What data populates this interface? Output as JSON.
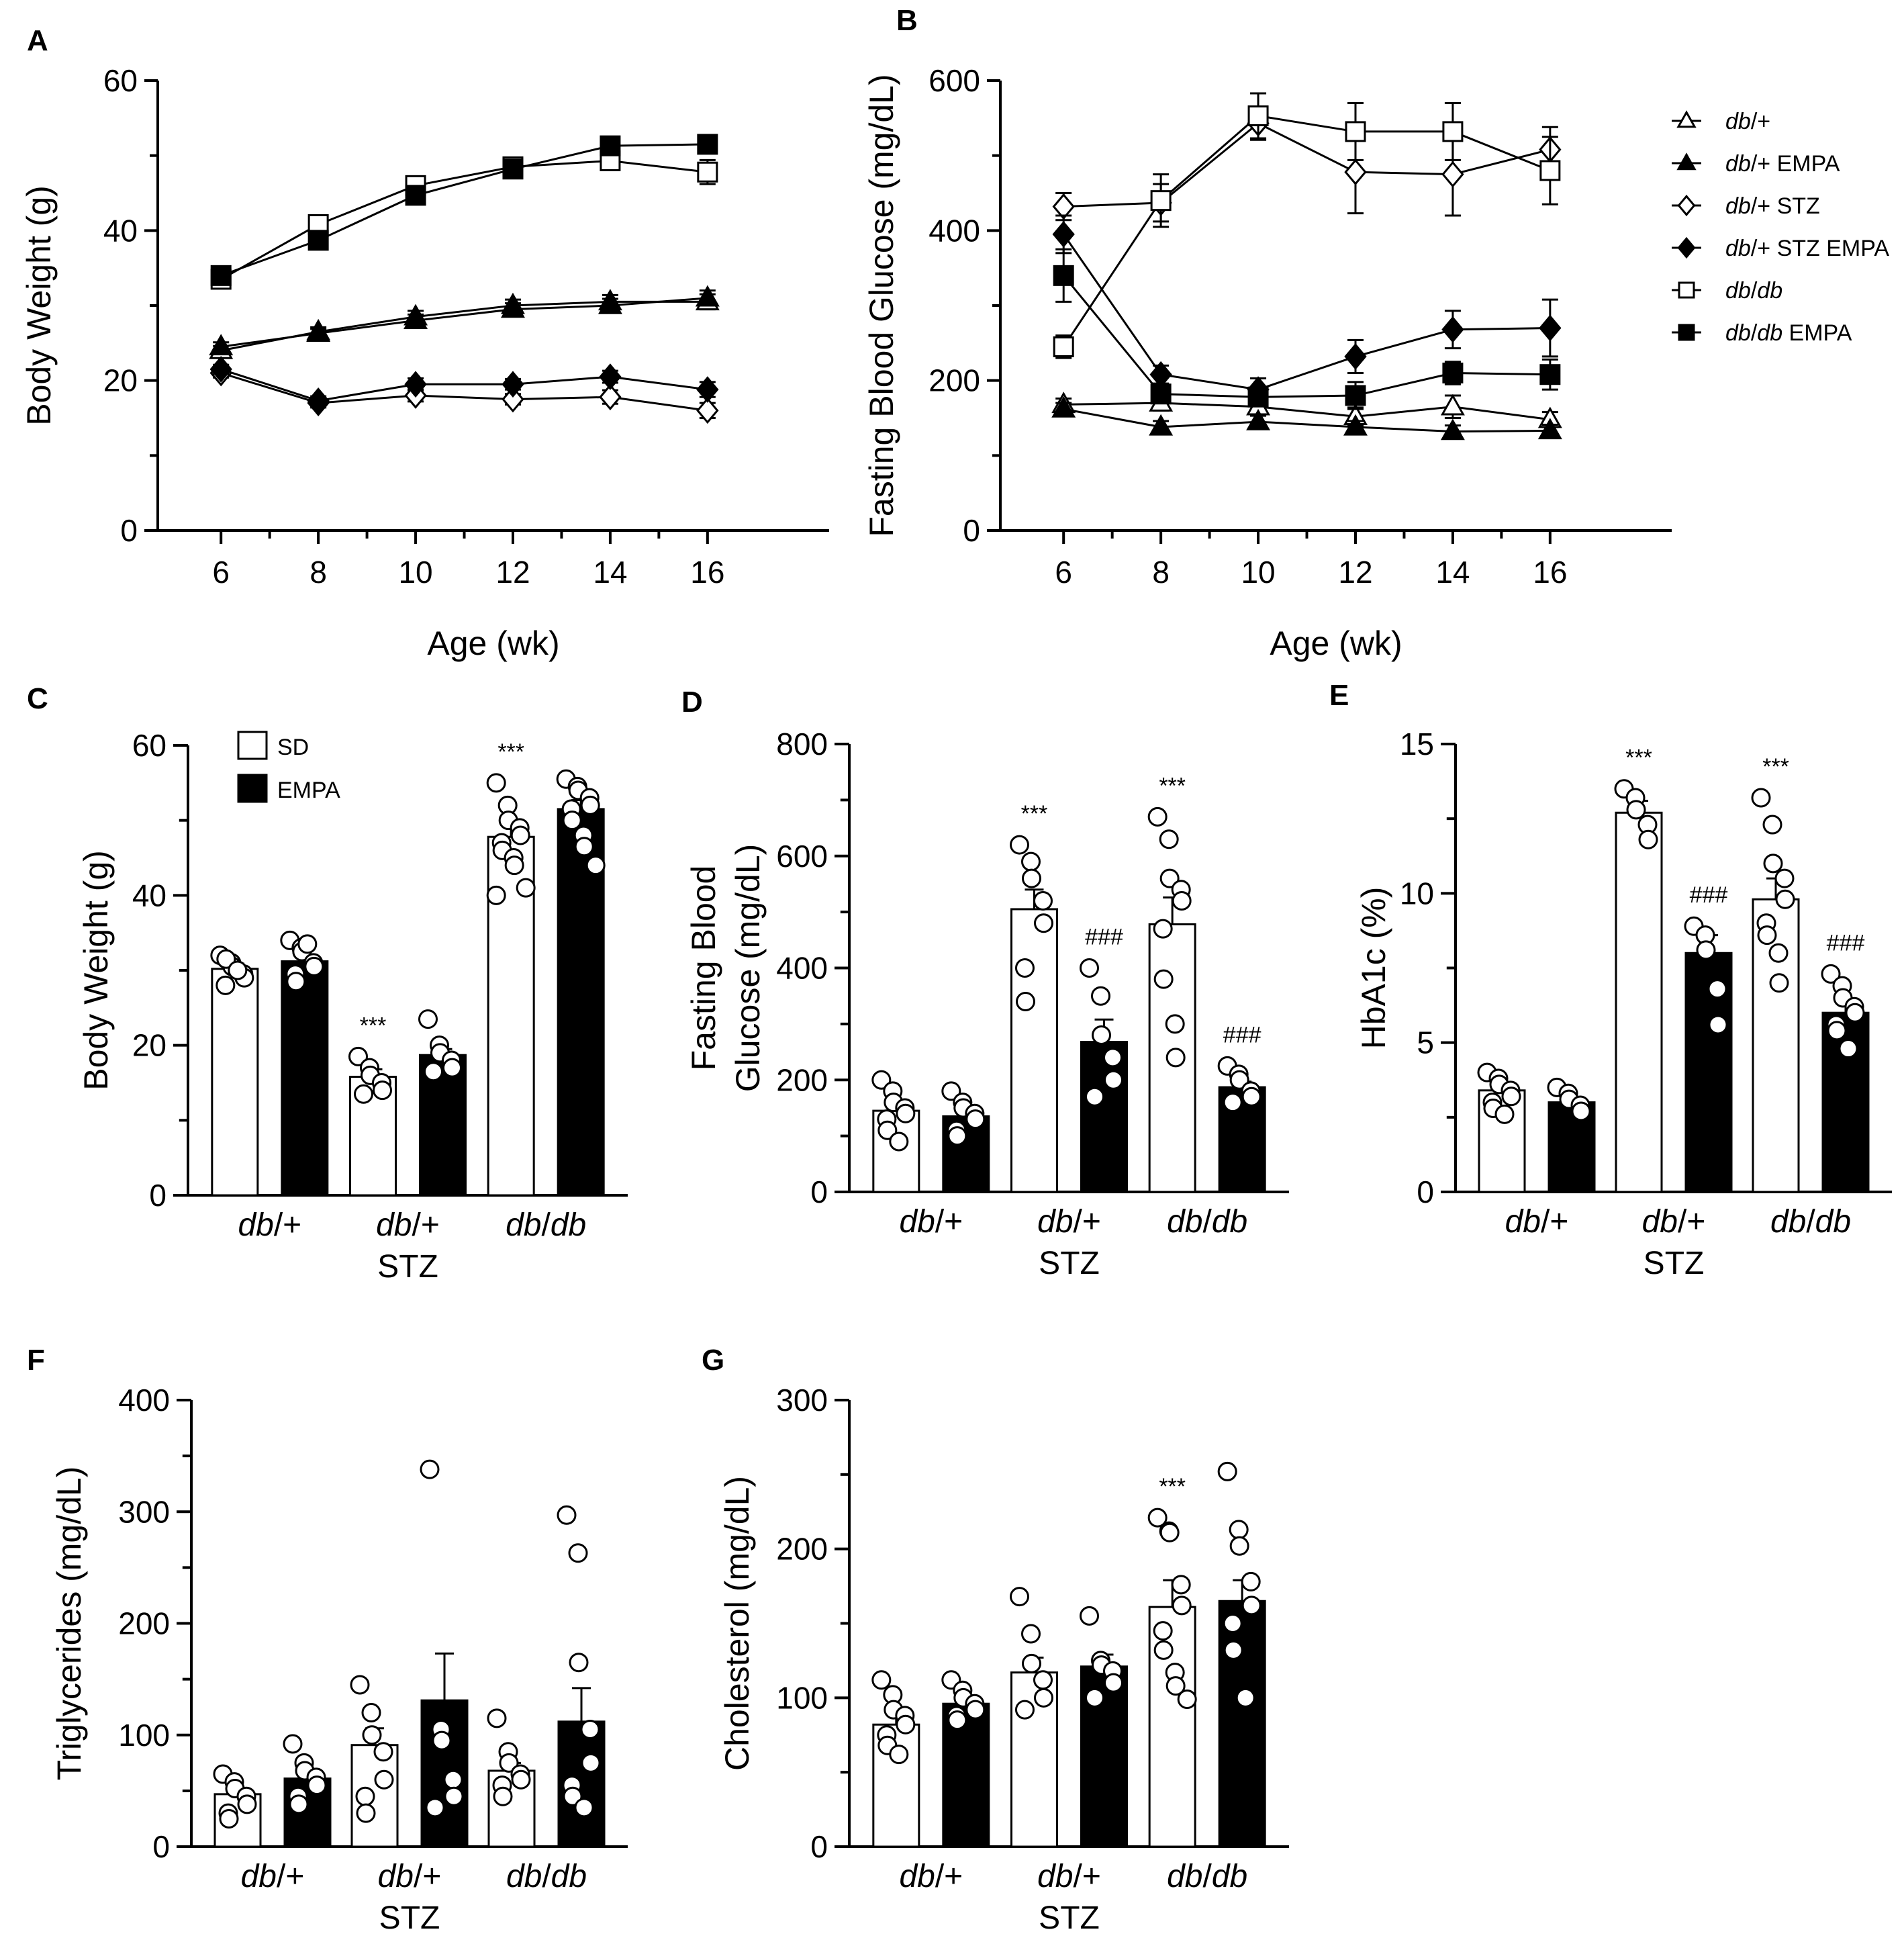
{
  "chart_data": [
    {
      "panel": "A",
      "type": "line",
      "xlabel": "Age  (wk)",
      "ylabel": "Body Weight  (g)",
      "x": [
        6,
        8,
        10,
        12,
        14,
        16
      ],
      "xlim": [
        4.7,
        18.5
      ],
      "ylim": [
        0,
        60
      ],
      "yticks": [
        0,
        20,
        40,
        60
      ],
      "xticks": [
        6,
        8,
        10,
        12,
        14,
        16
      ],
      "series": [
        {
          "name": "db/+",
          "marker": "triangle-open",
          "values": [
            24,
            26.5,
            28.5,
            30,
            30.5,
            30.5
          ],
          "sem": [
            0.6,
            0.6,
            0.8,
            0.8,
            0.9,
            1.0
          ]
        },
        {
          "name": "db/+ EMPA",
          "marker": "triangle-filled",
          "values": [
            24.5,
            26.3,
            28,
            29.5,
            30,
            31
          ],
          "sem": [
            0.6,
            0.6,
            0.8,
            0.8,
            0.9,
            1.0
          ]
        },
        {
          "name": "db/+ STZ",
          "marker": "diamond-open",
          "values": [
            21,
            17,
            18,
            17.5,
            17.8,
            16
          ],
          "sem": [
            0.6,
            0.6,
            0.8,
            0.7,
            0.9,
            1.0
          ]
        },
        {
          "name": "db/+ STZ EMPA",
          "marker": "diamond-filled",
          "values": [
            21.5,
            17.3,
            19.5,
            19.5,
            20.5,
            18.8
          ],
          "sem": [
            0.6,
            0.6,
            0.8,
            0.7,
            0.8,
            1.0
          ]
        },
        {
          "name": "db/db",
          "marker": "square-open",
          "values": [
            33.5,
            40.8,
            46,
            48.5,
            49.3,
            47.8
          ],
          "sem": [
            0.8,
            0.9,
            1.0,
            1.0,
            1.2,
            1.6
          ]
        },
        {
          "name": "db/db EMPA",
          "marker": "square-filled",
          "values": [
            34,
            38.7,
            44.7,
            48.2,
            51.3,
            51.5
          ],
          "sem": [
            0.8,
            0.9,
            1.0,
            1.0,
            1.1,
            1.2
          ]
        }
      ]
    },
    {
      "panel": "B",
      "type": "line",
      "xlabel": "Age  (wk)",
      "ylabel": "Fasting Blood Glucose (mg/dL)",
      "x": [
        6,
        8,
        10,
        12,
        14,
        16
      ],
      "xlim": [
        4.7,
        18.5
      ],
      "ylim": [
        0,
        600
      ],
      "yticks": [
        0,
        200,
        400,
        600
      ],
      "xticks": [
        6,
        8,
        10,
        12,
        14,
        16
      ],
      "series": [
        {
          "name": "db/+",
          "marker": "triangle-open",
          "values": [
            168,
            170,
            165,
            152,
            165,
            148
          ],
          "sem": [
            8,
            10,
            10,
            12,
            15,
            10
          ]
        },
        {
          "name": "db/+ EMPA",
          "marker": "triangle-filled",
          "values": [
            162,
            138,
            145,
            138,
            132,
            133
          ],
          "sem": [
            8,
            8,
            8,
            8,
            8,
            8
          ]
        },
        {
          "name": "db/+ STZ",
          "marker": "diamond-open",
          "values": [
            432,
            437,
            543,
            478,
            475,
            508
          ],
          "sem": [
            18,
            25,
            22,
            55,
            55,
            30
          ]
        },
        {
          "name": "db/+ STZ EMPA",
          "marker": "diamond-filled",
          "values": [
            395,
            208,
            188,
            232,
            268,
            270
          ],
          "sem": [
            25,
            12,
            15,
            22,
            25,
            38
          ]
        },
        {
          "name": "db/db",
          "marker": "square-open",
          "values": [
            245,
            440,
            553,
            532,
            532,
            480
          ],
          "sem": [
            15,
            35,
            30,
            38,
            38,
            45
          ]
        },
        {
          "name": "db/db EMPA",
          "marker": "square-filled",
          "values": [
            340,
            182,
            178,
            180,
            210,
            208
          ],
          "sem": [
            35,
            12,
            10,
            18,
            15,
            20
          ]
        }
      ],
      "legend": [
        "db/+",
        "db/+ EMPA",
        "db/+ STZ",
        "db/+ STZ EMPA",
        "db/db",
        "db/db EMPA"
      ]
    },
    {
      "panel": "C",
      "type": "bar",
      "ylabel": "Body Weight  (g)",
      "categories": [
        "db/+",
        "db/+ STZ",
        "db/db"
      ],
      "ylim": [
        0,
        60
      ],
      "yticks": [
        0,
        20,
        40,
        60
      ],
      "series": [
        {
          "name": "SD",
          "values": [
            30.2,
            15.8,
            47.8
          ],
          "sem": [
            0.7,
            1.0,
            1.8
          ],
          "points": [
            [
              32,
              31,
              30.5,
              29.5,
              29,
              28,
              31.5,
              30
            ],
            [
              18.5,
              17,
              16,
              15,
              14,
              13.5
            ],
            [
              55,
              52,
              50,
              49,
              48,
              47,
              46,
              45,
              44,
              41,
              40
            ]
          ],
          "annotations": [
            "",
            "***",
            "***"
          ]
        },
        {
          "name": "EMPA",
          "values": [
            31.2,
            18.7,
            51.5
          ],
          "sem": [
            0.7,
            0.8,
            1.2
          ],
          "points": [
            [
              34,
              33,
              32.5,
              31,
              30.5,
              29.5,
              28.5,
              33.5
            ],
            [
              23.5,
              20,
              19,
              18,
              17,
              16.5
            ],
            [
              55.5,
              54.5,
              54,
              53,
              52,
              51.5,
              50,
              48,
              46.5,
              44
            ]
          ],
          "annotations": [
            "",
            "",
            ""
          ]
        }
      ],
      "legend": [
        "SD",
        "EMPA"
      ]
    },
    {
      "panel": "D",
      "type": "bar",
      "ylabel": "Fasting Blood Glucose (mg/dL)",
      "ylabel_lines": [
        "Fasting Blood",
        "Glucose (mg/dL)"
      ],
      "categories": [
        "db/+",
        "db/+ STZ",
        "db/db"
      ],
      "ylim": [
        0,
        800
      ],
      "yticks": [
        0,
        200,
        400,
        600,
        800
      ],
      "series": [
        {
          "name": "SD",
          "values": [
            145,
            505,
            478
          ],
          "sem": [
            12,
            35,
            48
          ],
          "points": [
            [
              200,
              180,
              160,
              150,
              140,
              130,
              110,
              90
            ],
            [
              620,
              590,
              560,
              520,
              480,
              400,
              340
            ],
            [
              670,
              630,
              560,
              540,
              520,
              470,
              380,
              300,
              240
            ]
          ],
          "annotations": [
            "",
            "***",
            "***"
          ]
        },
        {
          "name": "EMPA",
          "values": [
            135,
            268,
            187
          ],
          "sem": [
            8,
            40,
            10
          ],
          "points": [
            [
              180,
              160,
              150,
              140,
              130,
              110,
              100
            ],
            [
              400,
              350,
              280,
              240,
              200,
              170
            ],
            [
              225,
              210,
              200,
              180,
              170,
              160
            ]
          ],
          "annotations": [
            "",
            "###",
            "###"
          ]
        }
      ]
    },
    {
      "panel": "E",
      "type": "bar",
      "ylabel": "HbA1c (%)",
      "categories": [
        "db/+",
        "db/+ STZ",
        "db/db"
      ],
      "ylim": [
        0,
        15
      ],
      "yticks": [
        0,
        5,
        10,
        15
      ],
      "series": [
        {
          "name": "SD",
          "values": [
            3.4,
            12.7,
            9.8
          ],
          "sem": [
            0.2,
            0.4,
            0.7
          ],
          "points": [
            [
              4.0,
              3.8,
              3.6,
              3.4,
              3.2,
              3.0,
              2.8,
              2.6
            ],
            [
              13.5,
              13.2,
              12.8,
              12.3,
              11.8
            ],
            [
              13.2,
              12.3,
              11.0,
              10.5,
              9.8,
              9.0,
              8.6,
              8.0,
              7.0
            ]
          ],
          "annotations": [
            "",
            "***",
            "***"
          ]
        },
        {
          "name": "EMPA",
          "values": [
            3.0,
            8.0,
            6.0
          ],
          "sem": [
            0.15,
            0.6,
            0.3
          ],
          "points": [
            [
              3.5,
              3.3,
              3.1,
              2.9,
              2.7
            ],
            [
              8.9,
              8.6,
              8.1,
              6.8,
              5.6
            ],
            [
              7.3,
              6.9,
              6.5,
              6.2,
              6.0,
              5.6,
              5.4,
              4.8
            ]
          ],
          "annotations": [
            "",
            "###",
            "###"
          ]
        }
      ]
    },
    {
      "panel": "F",
      "type": "bar",
      "ylabel": "Triglycerides (mg/dL)",
      "categories": [
        "db/+",
        "db/+ STZ",
        "db/db"
      ],
      "ylim": [
        0,
        400
      ],
      "yticks": [
        0,
        100,
        200,
        300,
        400
      ],
      "series": [
        {
          "name": "SD",
          "values": [
            47,
            91,
            68
          ],
          "sem": [
            5,
            15,
            7
          ],
          "points": [
            [
              65,
              58,
              52,
              45,
              38,
              30,
              25
            ],
            [
              145,
              120,
              100,
              85,
              60,
              45,
              30
            ],
            [
              115,
              85,
              75,
              65,
              60,
              55,
              45
            ]
          ],
          "annotations": [
            "",
            "",
            ""
          ]
        },
        {
          "name": "EMPA",
          "values": [
            61,
            131,
            112
          ],
          "sem": [
            7,
            42,
            30
          ],
          "points": [
            [
              92,
              75,
              68,
              62,
              55,
              45,
              38
            ],
            [
              338,
              105,
              95,
              60,
              45,
              35
            ],
            [
              297,
              263,
              165,
              105,
              75,
              55,
              45,
              35
            ]
          ],
          "annotations": [
            "",
            "",
            ""
          ]
        }
      ]
    },
    {
      "panel": "G",
      "type": "bar",
      "ylabel": "Cholesterol (mg/dL)",
      "categories": [
        "db/+",
        "db/+ STZ",
        "db/db"
      ],
      "ylim": [
        0,
        300
      ],
      "yticks": [
        0,
        100,
        200,
        300
      ],
      "series": [
        {
          "name": "SD",
          "values": [
            82,
            117,
            161
          ],
          "sem": [
            6,
            10,
            18
          ],
          "points": [
            [
              112,
              102,
              92,
              88,
              82,
              75,
              68,
              62
            ],
            [
              168,
              143,
              123,
              112,
              100,
              92
            ],
            [
              221,
              212,
              211,
              176,
              162,
              145,
              132,
              117,
              108,
              99
            ]
          ],
          "annotations": [
            "",
            "",
            "***"
          ]
        },
        {
          "name": "EMPA",
          "values": [
            96,
            121,
            165
          ],
          "sem": [
            4,
            8,
            14
          ],
          "points": [
            [
              112,
              105,
              100,
              96,
              92,
              88,
              85
            ],
            [
              155,
              125,
              122,
              118,
              110,
              100
            ],
            [
              252,
              213,
              202,
              178,
              162,
              150,
              132,
              100,
              100
            ]
          ],
          "annotations": [
            "",
            "",
            ""
          ]
        }
      ]
    }
  ],
  "panel_labels": [
    "A",
    "B",
    "C",
    "D",
    "E",
    "F",
    "G"
  ],
  "x_category_lines": {
    "db_plus": [
      "db/+"
    ],
    "db_plus_stz": [
      "db/+",
      "STZ"
    ],
    "db_db": [
      "db/db"
    ]
  },
  "legend_B": [
    "db/+",
    "db/+ EMPA",
    "db/+ STZ",
    "db/+ STZ EMPA",
    "db/db",
    "db/db EMPA"
  ],
  "legend_C": [
    "SD",
    "EMPA"
  ]
}
